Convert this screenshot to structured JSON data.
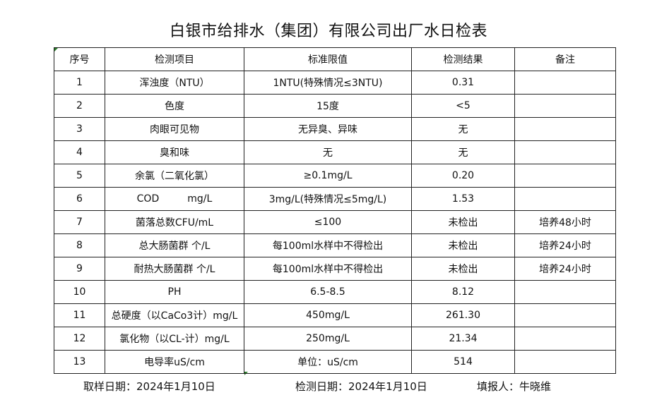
{
  "title": "白银市给排水（集团）有限公司出厂水日检表",
  "headers": [
    "序号",
    "检测项目",
    "标准限值",
    "检测结果",
    "备注"
  ],
  "rows": [
    [
      "1",
      "浑浊度（NTU）",
      "1NTU(特殊情况≤3NTU)",
      "0.31",
      ""
    ],
    [
      "2",
      "色度",
      "15度",
      "<5",
      ""
    ],
    [
      "3",
      "肉眼可见物",
      "无异臭、异味",
      "无",
      ""
    ],
    [
      "4",
      "臭和味",
      "无",
      "无",
      ""
    ],
    [
      "5",
      "余氯（二氧化氯）",
      "≥0.1mg/L",
      "0.20",
      ""
    ],
    [
      "6",
      "COD         mg/L",
      "3mg/L(特殊情况≤5mg/L)",
      "1.53",
      ""
    ],
    [
      "7",
      "菌落总数CFU/mL",
      "≤100",
      "未检出",
      "培养48小时"
    ],
    [
      "8",
      "总大肠菌群 个/L",
      "每100ml水样中不得检出",
      "未检出",
      "培养24小时"
    ],
    [
      "9",
      "耐热大肠菌群 个/L",
      "每100ml水样中不得检出",
      "未检出",
      "培养24小时"
    ],
    [
      "10",
      "PH",
      "6.5-8.5",
      "8.12",
      ""
    ],
    [
      "11",
      "总硬度（以CaCo3计）mg/L",
      "450mg/L",
      "261.30",
      ""
    ],
    [
      "12",
      "氯化物（以CL-计）mg/L",
      "250mg/L",
      "21.34",
      ""
    ],
    [
      "13",
      "电导率uS/cm",
      "单位：uS/cm",
      "514",
      ""
    ]
  ],
  "footer": {
    "sampling_date": "取样日期：2024年1月10日",
    "test_date": "检测日期：2024年1月10日",
    "reporter": "填报人：牛晓维"
  }
}
